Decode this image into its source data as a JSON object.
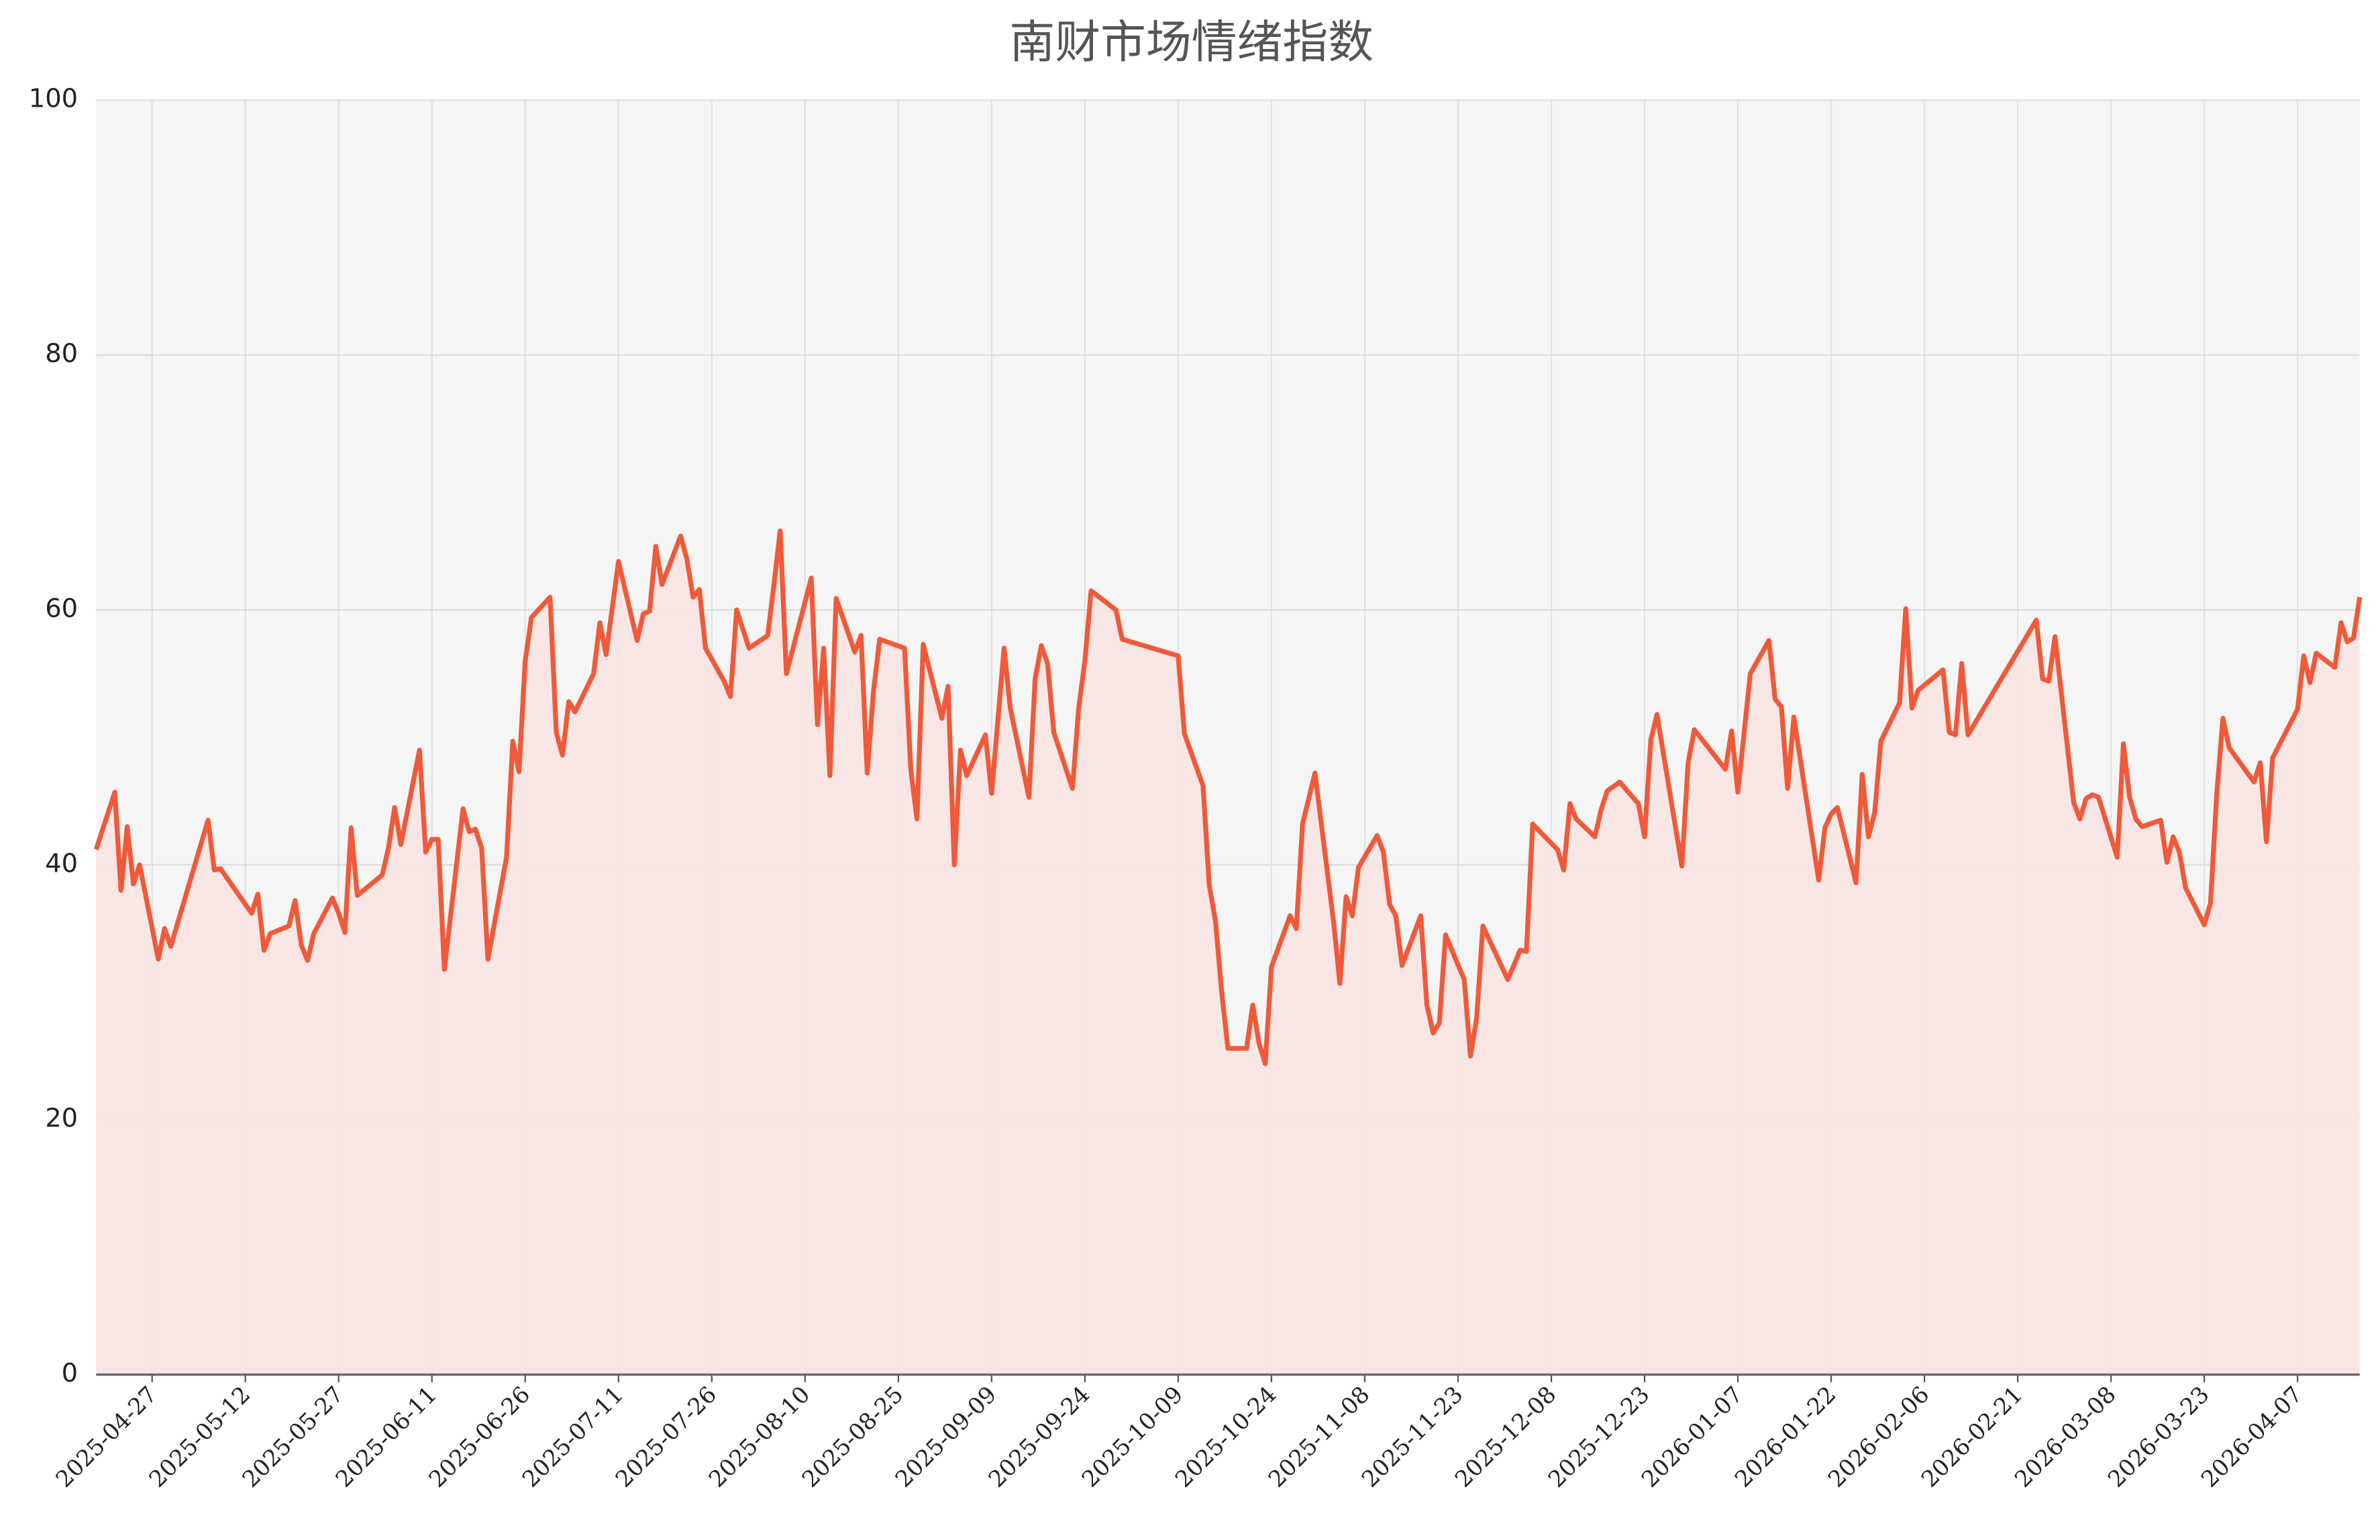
{
  "chart_data": {
    "type": "line",
    "title": "南财市场情绪指数",
    "xlim": [
      "2025-04-18",
      "2026-04-17"
    ],
    "xticks": [
      "2025-04-27",
      "2025-05-12",
      "2025-05-27",
      "2025-06-11",
      "2025-06-26",
      "2025-07-11",
      "2025-07-26",
      "2025-08-10",
      "2025-08-25",
      "2025-09-09",
      "2025-09-24",
      "2025-10-09",
      "2025-10-24",
      "2025-11-08",
      "2025-11-23",
      "2025-12-08",
      "2025-12-23",
      "2026-01-07",
      "2026-01-22",
      "2026-02-06",
      "2026-02-21",
      "2026-03-08",
      "2026-03-23",
      "2026-04-07"
    ],
    "ylim": [
      0,
      100
    ],
    "yticks": [
      0,
      20,
      40,
      60,
      80,
      100
    ],
    "grid": true,
    "area": true,
    "x": [
      "2025-04-18",
      "2025-04-21",
      "2025-04-22",
      "2025-04-23",
      "2025-04-24",
      "2025-04-25",
      "2025-04-28",
      "2025-04-29",
      "2025-04-30",
      "2025-05-06",
      "2025-05-07",
      "2025-05-08",
      "2025-05-13",
      "2025-05-14",
      "2025-05-15",
      "2025-05-16",
      "2025-05-19",
      "2025-05-20",
      "2025-05-21",
      "2025-05-22",
      "2025-05-23",
      "2025-05-26",
      "2025-05-27",
      "2025-05-28",
      "2025-05-29",
      "2025-05-30",
      "2025-06-03",
      "2025-06-04",
      "2025-06-05",
      "2025-06-06",
      "2025-06-09",
      "2025-06-10",
      "2025-06-11",
      "2025-06-12",
      "2025-06-13",
      "2025-06-16",
      "2025-06-17",
      "2025-06-18",
      "2025-06-19",
      "2025-06-20",
      "2025-06-23",
      "2025-06-24",
      "2025-06-25",
      "2025-06-26",
      "2025-06-27",
      "2025-06-30",
      "2025-07-01",
      "2025-07-02",
      "2025-07-03",
      "2025-07-04",
      "2025-07-07",
      "2025-07-08",
      "2025-07-09",
      "2025-07-11",
      "2025-07-14",
      "2025-07-15",
      "2025-07-16",
      "2025-07-17",
      "2025-07-18",
      "2025-07-21",
      "2025-07-22",
      "2025-07-23",
      "2025-07-24",
      "2025-07-25",
      "2025-07-28",
      "2025-07-29",
      "2025-07-30",
      "2025-08-01",
      "2025-08-04",
      "2025-08-05",
      "2025-08-06",
      "2025-08-07",
      "2025-08-11",
      "2025-08-12",
      "2025-08-13",
      "2025-08-14",
      "2025-08-15",
      "2025-08-18",
      "2025-08-19",
      "2025-08-20",
      "2025-08-21",
      "2025-08-22",
      "2025-08-26",
      "2025-08-27",
      "2025-08-28",
      "2025-08-29",
      "2025-09-01",
      "2025-09-02",
      "2025-09-03",
      "2025-09-04",
      "2025-09-05",
      "2025-09-08",
      "2025-09-09",
      "2025-09-11",
      "2025-09-12",
      "2025-09-15",
      "2025-09-16",
      "2025-09-17",
      "2025-09-18",
      "2025-09-19",
      "2025-09-22",
      "2025-09-23",
      "2025-09-24",
      "2025-09-25",
      "2025-09-29",
      "2025-09-30",
      "2025-10-09",
      "2025-10-10",
      "2025-10-13",
      "2025-10-14",
      "2025-10-15",
      "2025-10-16",
      "2025-10-17",
      "2025-10-20",
      "2025-10-21",
      "2025-10-22",
      "2025-10-23",
      "2025-10-24",
      "2025-10-27",
      "2025-10-28",
      "2025-10-29",
      "2025-10-31",
      "2025-11-03",
      "2025-11-04",
      "2025-11-05",
      "2025-11-06",
      "2025-11-07",
      "2025-11-10",
      "2025-11-11",
      "2025-11-12",
      "2025-11-13",
      "2025-11-14",
      "2025-11-17",
      "2025-11-18",
      "2025-11-19",
      "2025-11-20",
      "2025-11-21",
      "2025-11-24",
      "2025-11-25",
      "2025-11-26",
      "2025-11-27",
      "2025-12-01",
      "2025-12-03",
      "2025-12-04",
      "2025-12-05",
      "2025-12-09",
      "2025-12-10",
      "2025-12-11",
      "2025-12-12",
      "2025-12-15",
      "2025-12-16",
      "2025-12-17",
      "2025-12-19",
      "2025-12-22",
      "2025-12-23",
      "2025-12-24",
      "2025-12-25",
      "2025-12-29",
      "2025-12-30",
      "2025-12-31",
      "2026-01-05",
      "2026-01-06",
      "2026-01-07",
      "2026-01-09",
      "2026-01-12",
      "2026-01-13",
      "2026-01-14",
      "2026-01-15",
      "2026-01-16",
      "2026-01-20",
      "2026-01-21",
      "2026-01-22",
      "2026-01-23",
      "2026-01-26",
      "2026-01-27",
      "2026-01-28",
      "2026-01-29",
      "2026-01-30",
      "2026-02-02",
      "2026-02-03",
      "2026-02-04",
      "2026-02-05",
      "2026-02-09",
      "2026-02-10",
      "2026-02-11",
      "2026-02-12",
      "2026-02-13",
      "2026-02-24",
      "2026-02-25",
      "2026-02-26",
      "2026-02-27",
      "2026-03-02",
      "2026-03-03",
      "2026-03-04",
      "2026-03-05",
      "2026-03-06",
      "2026-03-09",
      "2026-03-10",
      "2026-03-11",
      "2026-03-12",
      "2026-03-13",
      "2026-03-16",
      "2026-03-17",
      "2026-03-18",
      "2026-03-19",
      "2026-03-20",
      "2026-03-23",
      "2026-03-24",
      "2026-03-25",
      "2026-03-26",
      "2026-03-27",
      "2026-03-31",
      "2026-04-01",
      "2026-04-02",
      "2026-04-03",
      "2026-04-07",
      "2026-04-08",
      "2026-04-09",
      "2026-04-10",
      "2026-04-13",
      "2026-04-14",
      "2026-04-15",
      "2026-04-16",
      "2026-04-17"
    ],
    "series": [
      {
        "color": "#ef5a3b",
        "fill": "#f8e4e2",
        "values": [
          41.2,
          45.7,
          38,
          43,
          38.5,
          40,
          32.6,
          35,
          33.6,
          43.5,
          39.6,
          39.7,
          36.2,
          37.7,
          33.3,
          34.6,
          35.2,
          37.2,
          33.7,
          32.5,
          34.6,
          37.4,
          36.2,
          34.7,
          42.9,
          37.6,
          39.2,
          41.3,
          44.5,
          41.6,
          49,
          41,
          42,
          42,
          31.8,
          44.4,
          42.6,
          42.8,
          41.3,
          32.6,
          40.6,
          49.7,
          47.3,
          56,
          59.4,
          61,
          50.4,
          48.6,
          52.8,
          52,
          55,
          59,
          56.5,
          63.8,
          57.6,
          59.7,
          59.9,
          65,
          62,
          65.8,
          64,
          61,
          61.6,
          57,
          54.4,
          53.2,
          60,
          57,
          58,
          62,
          66.2,
          55,
          62.5,
          51,
          57,
          47,
          60.9,
          56.7,
          58,
          47.2,
          53.6,
          57.7,
          57,
          47.5,
          43.6,
          57.3,
          51.5,
          54,
          40,
          49,
          47,
          50.2,
          45.6,
          57,
          52.3,
          45.3,
          54.6,
          57.2,
          55.8,
          50.4,
          46,
          52.3,
          56,
          61.5,
          60,
          57.7,
          56.4,
          50.3,
          46.2,
          38.4,
          35.6,
          30,
          25.6,
          25.6,
          29,
          26,
          24.4,
          32,
          36,
          35,
          43.2,
          47.2,
          35.5,
          30.7,
          37.5,
          36,
          39.8,
          42.3,
          41,
          36.9,
          36,
          32.1,
          36,
          29,
          26.8,
          27.6,
          34.5,
          31,
          25,
          28,
          35.2,
          31,
          33.3,
          33.2,
          43.2,
          41.2,
          39.6,
          44.8,
          43.6,
          42.2,
          44.3,
          45.8,
          46.5,
          44.8,
          42.2,
          49.8,
          51.8,
          39.9,
          48,
          50.6,
          47.5,
          50.5,
          45.7,
          55,
          57.6,
          53,
          52.4,
          46,
          51.6,
          38.8,
          42.9,
          44,
          44.5,
          38.6,
          47.1,
          42.2,
          44.1,
          49.7,
          52.7,
          60.1,
          52.3,
          53.7,
          55.3,
          50.4,
          50.2,
          55.8,
          50.2,
          59.2,
          54.6,
          54.4,
          57.9,
          44.9,
          43.6,
          45.2,
          45.5,
          45.3,
          40.6,
          49.5,
          45.3,
          43.6,
          43,
          43.5,
          40.2,
          42.2,
          41,
          38.2,
          35.3,
          37,
          45.5,
          51.5,
          49.2,
          46.5,
          48,
          41.8,
          48.4,
          52.2,
          56.4,
          54.3,
          56.6,
          55.5,
          59,
          57.5,
          57.8,
          61
        ]
      }
    ]
  }
}
